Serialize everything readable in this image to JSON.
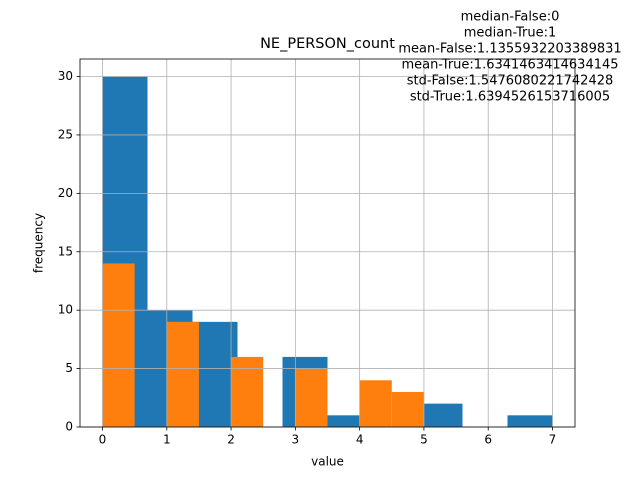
{
  "chart_data": {
    "type": "histogram",
    "title": "NE_PERSON_count",
    "annotation": [
      "median-False:0",
      "median-True:1",
      "mean-False:1.1355932203389831",
      "mean-True:1.6341463414634145",
      "std-False:1.5476080221742428",
      "std-True:1.6394526153716005"
    ],
    "xlabel": "value",
    "ylabel": "frequency",
    "xlim": [
      -0.35,
      7.35
    ],
    "ylim": [
      0,
      31.5
    ],
    "xticks": [
      0,
      1,
      2,
      3,
      4,
      5,
      6,
      7
    ],
    "yticks": [
      0,
      5,
      10,
      15,
      20,
      25,
      30
    ],
    "grid": true,
    "series": [
      {
        "color": "#1f77b4",
        "bins": [
          0,
          0.7,
          1.4,
          2.1,
          2.8,
          3.5,
          4.2,
          4.9,
          5.6,
          6.3,
          7
        ],
        "values": [
          30,
          10,
          9,
          0,
          6,
          1,
          0,
          2,
          0,
          1
        ]
      },
      {
        "color": "#ff7f0e",
        "bins": [
          0,
          0.5,
          1,
          1.5,
          2,
          2.5,
          3,
          3.5,
          4,
          4.5,
          5
        ],
        "values": [
          14,
          0,
          9,
          0,
          6,
          0,
          5,
          0,
          4,
          3
        ]
      }
    ]
  }
}
